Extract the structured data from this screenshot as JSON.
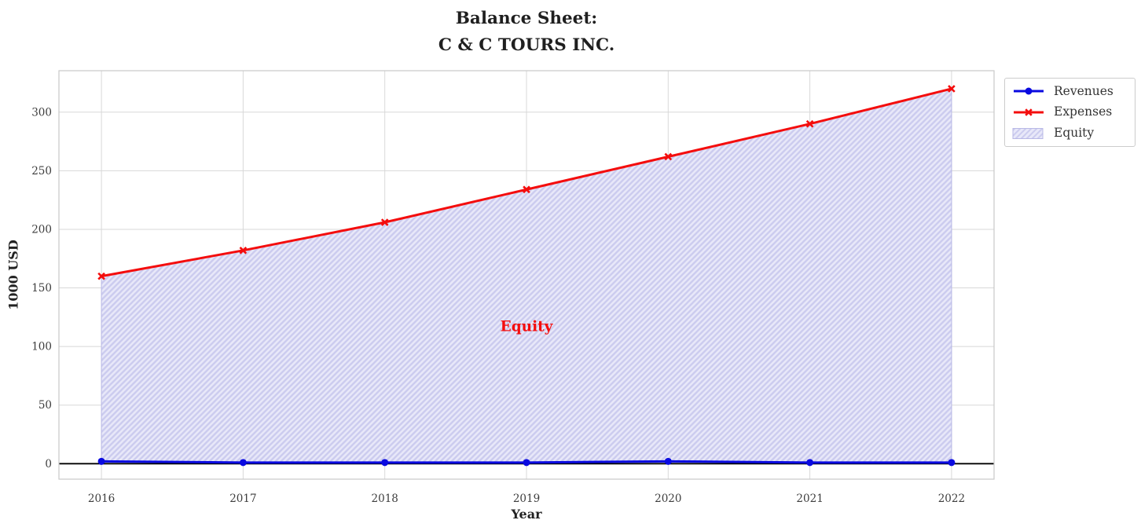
{
  "chart_data": {
    "type": "line",
    "title_lines": [
      "Balance Sheet:",
      "C & C TOURS INC."
    ],
    "xlabel": "Year",
    "ylabel": "1000 USD",
    "x": [
      2016,
      2017,
      2018,
      2019,
      2020,
      2021,
      2022
    ],
    "series": [
      {
        "name": "Revenues",
        "color": "#0a0ae0",
        "marker": "circle",
        "values": [
          2,
          1,
          1,
          1,
          2,
          1,
          1
        ]
      },
      {
        "name": "Expenses",
        "color": "#f40d0d",
        "marker": "x",
        "values": [
          160,
          182,
          206,
          234,
          262,
          290,
          320
        ]
      }
    ],
    "fill_between": {
      "name": "Equity",
      "upper": "Expenses",
      "lower": "Revenues",
      "hatch": "/",
      "fill_color": "#e8e8f9",
      "hatch_color": "#ccccef"
    },
    "baseline": {
      "y": 0,
      "color": "#000000"
    },
    "annotation": {
      "text": "Equity",
      "x": 2019,
      "y": 117,
      "color": "#f40d0d"
    },
    "xticks": [
      2016,
      2017,
      2018,
      2019,
      2020,
      2021,
      2022
    ],
    "yticks": [
      0,
      50,
      100,
      150,
      200,
      250,
      300
    ],
    "xlim": [
      2015.7,
      2022.3
    ],
    "ylim": [
      -13.2,
      335.4
    ],
    "grid": true,
    "legend_position": "outside upper right"
  }
}
